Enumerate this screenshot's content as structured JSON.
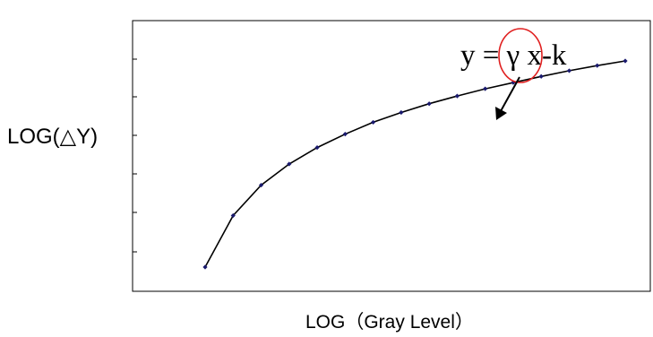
{
  "chart_data": {
    "type": "line",
    "xlabel": "LOG（Gray Level）",
    "ylabel": "LOG(△Y)",
    "grid": false,
    "legend": "none",
    "series": [
      {
        "x": [
          0,
          1,
          2,
          3,
          4,
          5,
          6,
          7,
          8,
          9,
          10,
          11,
          12,
          13,
          14,
          15
        ],
        "y": [
          0.0,
          1.0,
          1.59,
          2.0,
          2.32,
          2.58,
          2.81,
          3.0,
          3.17,
          3.32,
          3.46,
          3.58,
          3.7,
          3.81,
          3.91,
          4.0
        ]
      }
    ],
    "annotation": {
      "text": "y = γ x-k",
      "highlighted_symbol": "γ"
    },
    "colors": {
      "line": "#000000",
      "marker": "#1a1a6e",
      "circle": "#e02020",
      "frame": "#000000"
    }
  }
}
